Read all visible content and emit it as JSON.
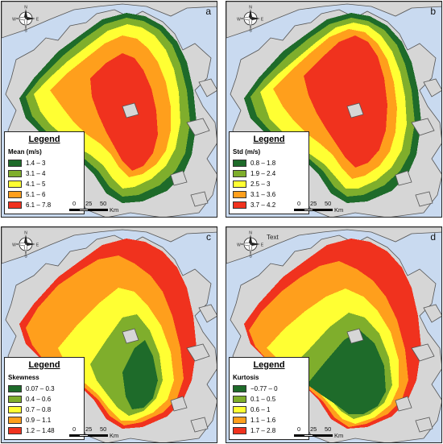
{
  "compass": {
    "n": "N",
    "s": "S",
    "e": "E",
    "w": "W"
  },
  "scale": {
    "ticks": [
      "0",
      "25",
      "50"
    ],
    "unit": "Km"
  },
  "colors": {
    "water": "#c9daf0",
    "land": "#d6d6d6",
    "land_outline": "#555555",
    "class1": "#1e6b2a",
    "class2": "#7fae2c",
    "class3": "#ffff33",
    "class4": "#ff9f1c",
    "class5": "#f0321e"
  },
  "panels": [
    {
      "letter": "a",
      "compass_text": "",
      "legend_title": "Legend",
      "legend_subtitle": "Mean (m/s)",
      "legend_items": [
        "1.4 – 3",
        "3.1 – 4",
        "4.1 – 5",
        "5.1 – 6",
        "6.1 – 7.8"
      ]
    },
    {
      "letter": "b",
      "compass_text": "",
      "legend_title": "Legend",
      "legend_subtitle": "Std (m/s)",
      "legend_items": [
        "0.8 – 1.8",
        "1.9 – 2.4",
        "2.5 – 3",
        "3.1 – 3.6",
        "3.7 – 4.2"
      ]
    },
    {
      "letter": "c",
      "compass_text": "",
      "legend_title": "Legend",
      "legend_subtitle": "Skewness",
      "legend_items": [
        "0.07 – 0.3",
        "0.4 – 0.6",
        "0.7 – 0.8",
        "0.9 – 1.1",
        "1.2 – 1.48"
      ]
    },
    {
      "letter": "d",
      "compass_text": "Text",
      "legend_title": "Legend",
      "legend_subtitle": "Kurtosis",
      "legend_items": [
        "−0.77 – 0",
        "0.1 – 0.5",
        "0.6 – 1",
        "1.1 – 1.6",
        "1.7 – 2.8"
      ]
    }
  ]
}
